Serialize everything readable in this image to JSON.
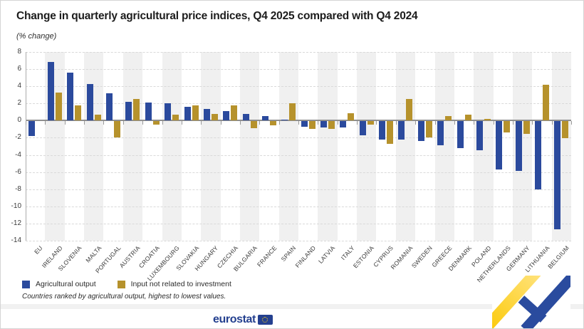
{
  "header": {
    "title": "Change in quarterly agricultural price indices, Q4 2025 compared with Q4 2024",
    "subtitle": "(% change)"
  },
  "chart_data": {
    "type": "bar",
    "title": "Change in quarterly agricultural price indices, Q4 2025 compared with Q4 2024",
    "unit_label": "(% change)",
    "categories": [
      "EU",
      "IRELAND",
      "SLOVENIA",
      "MALTA",
      "PORTUGAL",
      "AUSTRIA",
      "CROATIA",
      "LUXEMBOURG",
      "SLOVAKIA",
      "HUNGARY",
      "CZECHIA",
      "BULGARIA",
      "FRANCE",
      "SPAIN",
      "FINLAND",
      "LATVIA",
      "ITALY",
      "ESTONIA",
      "CYPRUS",
      "ROMANIA",
      "SWEDEN",
      "GREECE",
      "DENMARK",
      "POLAND",
      "NETHERLANDS",
      "GERMANY",
      "LITHUANIA",
      "BELGIUM"
    ],
    "series": [
      {
        "name": "Agricultural output",
        "color": "#2b4a9d",
        "values": [
          -1.7,
          6.8,
          5.6,
          4.3,
          3.2,
          2.2,
          2.1,
          2.0,
          1.6,
          1.4,
          1.1,
          0.8,
          0.5,
          0.1,
          -0.6,
          -0.7,
          -0.7,
          -1.6,
          -2.1,
          -2.1,
          -2.3,
          -2.8,
          -3.1,
          -3.4,
          -5.6,
          -5.8,
          -7.9,
          -12.6
        ]
      },
      {
        "name": "Input not related to investment",
        "color": "#b6922c",
        "values": [
          0.0,
          3.3,
          1.8,
          0.7,
          -1.9,
          2.5,
          -0.4,
          0.7,
          1.8,
          0.8,
          1.8,
          -0.8,
          -0.5,
          2.0,
          -0.9,
          -0.9,
          0.9,
          -0.4,
          -2.6,
          2.5,
          -1.9,
          0.5,
          0.7,
          0.2,
          -1.3,
          -1.5,
          4.2,
          -2.0
        ]
      }
    ],
    "ylim": [
      -14,
      8
    ],
    "ytick_step": 2,
    "yticks": [
      8,
      6,
      4,
      2,
      0,
      -2,
      -4,
      -6,
      -8,
      -10,
      -12,
      -14
    ],
    "grid": "horizontal-dashed",
    "legend_position": "bottom-left",
    "xlabel": "",
    "ylabel": ""
  },
  "footnote": "Countries ranked by agricultural output, highest to lowest values.",
  "branding": {
    "logo_text": "eurostat"
  },
  "colors": {
    "output_blue": "#2b4a9d",
    "input_gold": "#b6922c",
    "band_grey": "#f0f0f0",
    "grid_grey": "#d9d9d9",
    "zero_line": "#8f8f8f",
    "logo_blue": "#24408f",
    "accent_yellow": "#fbc800"
  }
}
